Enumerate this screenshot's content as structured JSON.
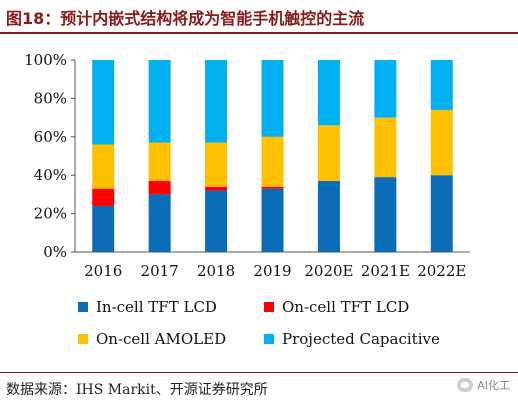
{
  "header": {
    "title": "图18：预计内嵌式结构将成为智能手机触控的主流"
  },
  "footer": {
    "source": "数据来源：IHS Markit、开源证券研究所",
    "watermark": "AI化工",
    "watermark_icon": "wechat-icon"
  },
  "chart_data": {
    "type": "bar",
    "stacked": true,
    "categories": [
      "2016",
      "2017",
      "2018",
      "2019",
      "2020E",
      "2021E",
      "2022E"
    ],
    "series": [
      {
        "name": "In-cell TFT LCD",
        "color": "#0b6db7",
        "values": [
          24,
          30,
          32,
          33,
          37,
          39,
          40
        ]
      },
      {
        "name": "On-cell TFT LCD",
        "color": "#ff0000",
        "values": [
          9,
          7,
          2,
          1,
          0,
          0,
          0
        ]
      },
      {
        "name": "On-cell AMOLED",
        "color": "#ffc000",
        "values": [
          23,
          20,
          23,
          26,
          29,
          31,
          34
        ]
      },
      {
        "name": "Projected Capacitive",
        "color": "#00b0f0",
        "values": [
          44,
          43,
          43,
          40,
          34,
          30,
          26
        ]
      }
    ],
    "yticks": [
      "0%",
      "20%",
      "40%",
      "60%",
      "80%",
      "100%"
    ],
    "ylim": [
      0,
      100
    ],
    "xlabel": "",
    "ylabel": "",
    "grid": false,
    "legend_position": "bottom"
  }
}
